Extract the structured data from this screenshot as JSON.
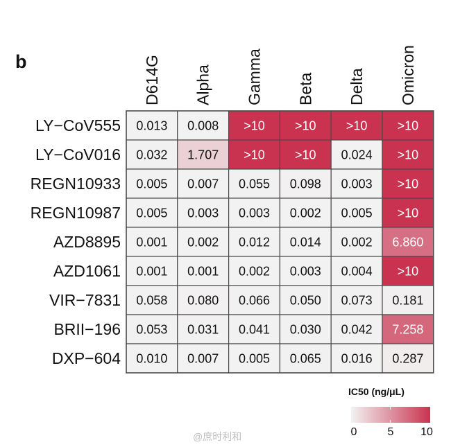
{
  "panel_label": "b",
  "watermark": "@庶时利和",
  "chart_data": {
    "type": "heatmap",
    "title": "",
    "columns": [
      "D614G",
      "Alpha",
      "Gamma",
      "Beta",
      "Delta",
      "Omicron"
    ],
    "rows": [
      "LY−CoV555",
      "LY−CoV016",
      "REGN10933",
      "REGN10987",
      "AZD8895",
      "AZD1061",
      "VIR−7831",
      "BRII−196",
      "DXP−604"
    ],
    "cells": [
      [
        "0.013",
        "0.008",
        ">10",
        ">10",
        ">10",
        ">10"
      ],
      [
        "0.032",
        "1.707",
        ">10",
        ">10",
        "0.024",
        ">10"
      ],
      [
        "0.005",
        "0.007",
        "0.055",
        "0.098",
        "0.003",
        ">10"
      ],
      [
        "0.005",
        "0.003",
        "0.003",
        "0.002",
        "0.005",
        ">10"
      ],
      [
        "0.001",
        "0.002",
        "0.012",
        "0.014",
        "0.002",
        "6.860"
      ],
      [
        "0.001",
        "0.001",
        "0.002",
        "0.003",
        "0.004",
        ">10"
      ],
      [
        "0.058",
        "0.080",
        "0.066",
        "0.050",
        "0.073",
        "0.181"
      ],
      [
        "0.053",
        "0.031",
        "0.041",
        "0.030",
        "0.042",
        "7.258"
      ],
      [
        "0.010",
        "0.007",
        "0.005",
        "0.065",
        "0.016",
        "0.287"
      ]
    ],
    "color_scale": {
      "title": "IC50 (ng/μL)",
      "min": 0,
      "max": 10,
      "ticks": [
        "0",
        "5",
        "10"
      ],
      "low_color": "#f2f2f2",
      "high_color": "#c93350"
    },
    "grid_color": "#4a4a4a"
  }
}
